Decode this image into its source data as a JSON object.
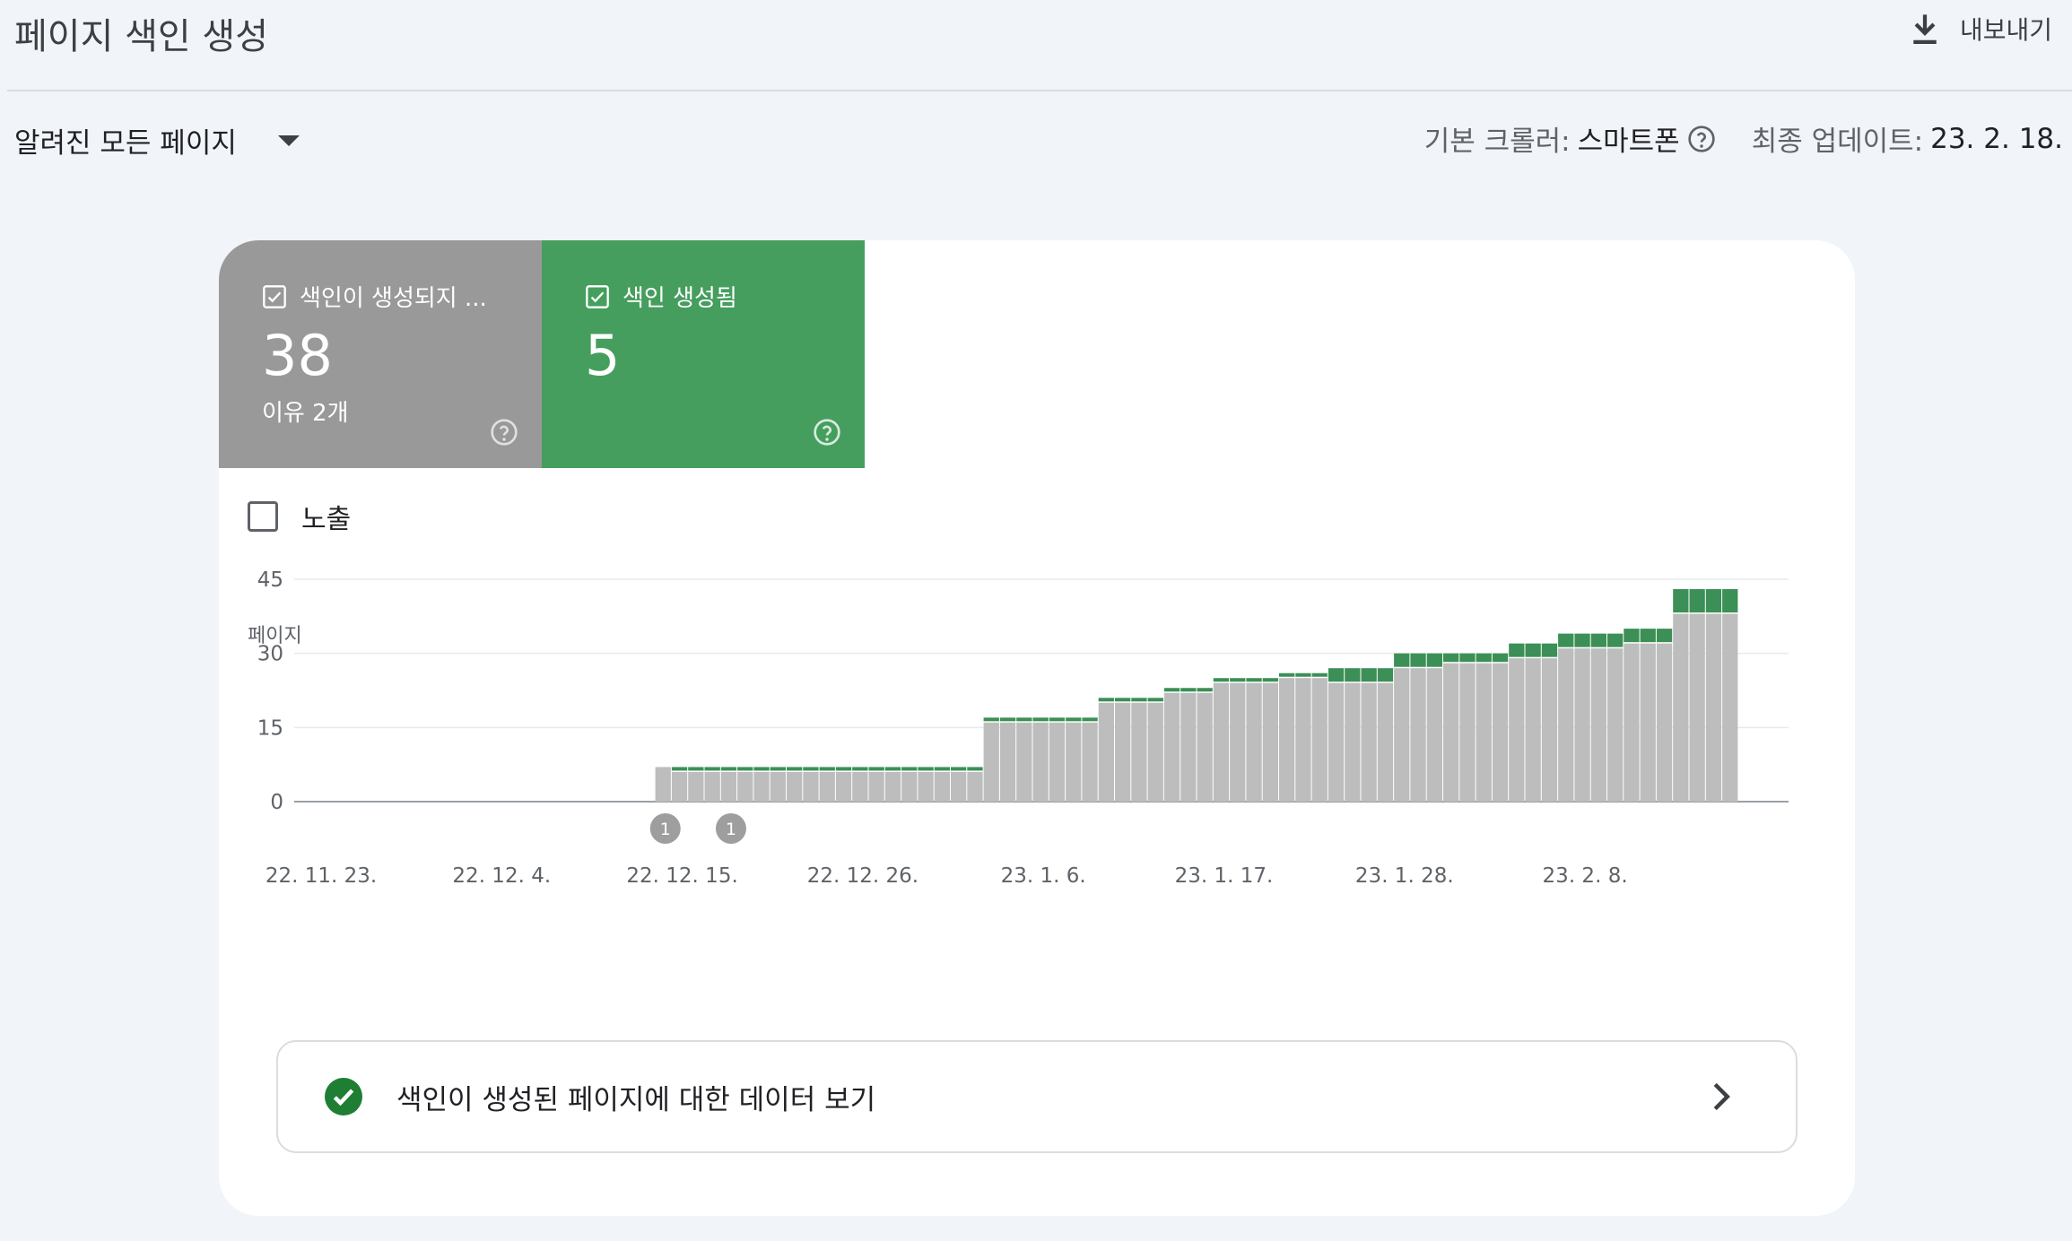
{
  "header": {
    "title": "페이지 색인 생성",
    "export_label": "내보내기"
  },
  "filter": {
    "selected": "알려진 모든 페이지"
  },
  "meta": {
    "crawler_label": "기본 크롤러:",
    "crawler_value": "스마트폰",
    "updated_label": "최종 업데이트:",
    "updated_value": "23. 2. 18."
  },
  "tiles": {
    "not_indexed": {
      "label": "색인이 생성되지 ...",
      "value": "38",
      "sub": "이유 2개",
      "color": "#999999"
    },
    "indexed": {
      "label": "색인 생성됨",
      "value": "5",
      "color": "#469e5e"
    }
  },
  "impressions": {
    "label": "노출",
    "checked": false
  },
  "data_link": {
    "label": "색인이 생성된 페이지에 대한 데이터 보기"
  },
  "chart_data": {
    "type": "bar",
    "stacked": true,
    "ylabel": "페이지",
    "yticks": [
      0,
      15,
      30,
      45
    ],
    "ylim": [
      0,
      45
    ],
    "x_start": "22. 11. 23.",
    "x_end": "23. 2. 18.",
    "x_ticks": [
      {
        "day": 0,
        "label": "22. 11. 23."
      },
      {
        "day": 11,
        "label": "22. 12. 4."
      },
      {
        "day": 22,
        "label": "22. 12. 15."
      },
      {
        "day": 33,
        "label": "22. 12. 26."
      },
      {
        "day": 44,
        "label": "23. 1. 6."
      },
      {
        "day": 55,
        "label": "23. 1. 17."
      },
      {
        "day": 66,
        "label": "23. 1. 28."
      },
      {
        "day": 77,
        "label": "23. 2. 8."
      }
    ],
    "annotations": [
      {
        "day": 22,
        "label": "1"
      },
      {
        "day": 26,
        "label": "1"
      }
    ],
    "series": [
      {
        "name": "색인이 생성되지 않음",
        "color": "#bdbdbd",
        "values": [
          0,
          0,
          0,
          0,
          0,
          0,
          0,
          0,
          0,
          0,
          0,
          0,
          0,
          0,
          0,
          0,
          0,
          0,
          0,
          0,
          0,
          0,
          7,
          6,
          6,
          6,
          6,
          6,
          6,
          6,
          6,
          6,
          6,
          6,
          6,
          6,
          6,
          6,
          6,
          6,
          6,
          6,
          16,
          16,
          16,
          16,
          16,
          16,
          16,
          20,
          20,
          20,
          20,
          22,
          22,
          22,
          24,
          24,
          24,
          24,
          25,
          25,
          25,
          24,
          24,
          24,
          24,
          27,
          27,
          27,
          28,
          28,
          28,
          28,
          29,
          29,
          29,
          31,
          31,
          31,
          31,
          32,
          32,
          32,
          38,
          38,
          38,
          38
        ]
      },
      {
        "name": "색인 생성됨",
        "color": "#3c8f56",
        "values": [
          0,
          0,
          0,
          0,
          0,
          0,
          0,
          0,
          0,
          0,
          0,
          0,
          0,
          0,
          0,
          0,
          0,
          0,
          0,
          0,
          0,
          0,
          0,
          1,
          1,
          1,
          1,
          1,
          1,
          1,
          1,
          1,
          1,
          1,
          1,
          1,
          1,
          1,
          1,
          1,
          1,
          1,
          1,
          1,
          1,
          1,
          1,
          1,
          1,
          1,
          1,
          1,
          1,
          1,
          1,
          1,
          1,
          1,
          1,
          1,
          1,
          1,
          1,
          3,
          3,
          3,
          3,
          3,
          3,
          3,
          2,
          2,
          2,
          2,
          3,
          3,
          3,
          3,
          3,
          3,
          3,
          3,
          3,
          3,
          5,
          5,
          5,
          5
        ]
      }
    ]
  }
}
